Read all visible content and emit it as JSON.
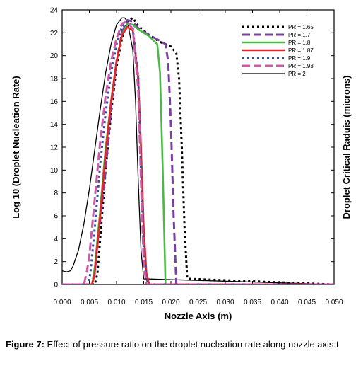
{
  "chart_data": {
    "type": "line",
    "xlabel": "Nozzle Axis (m)",
    "ylabel": "Log 10 (Droplet Nucleation Rate)",
    "y2label": "Droplet Critical Raduis (microns)",
    "xlim": [
      0,
      0.05
    ],
    "ylim": [
      0,
      24
    ],
    "xticks": [
      "0.000",
      "0.005",
      "0.010",
      "0.015",
      "0.020",
      "0.025",
      "0.030",
      "0.035",
      "0.040",
      "0.045",
      "0.050"
    ],
    "yticks": [
      "0",
      "2",
      "4",
      "6",
      "8",
      "10",
      "12",
      "14",
      "16",
      "18",
      "20",
      "22",
      "24"
    ],
    "legend_position": "top-right",
    "series": [
      {
        "name": "PR = 1.65",
        "color": "#000000",
        "dash": "dot",
        "x": [
          0,
          0.006,
          0.0065,
          0.007,
          0.008,
          0.009,
          0.01,
          0.011,
          0.012,
          0.013,
          0.014,
          0.016,
          0.018,
          0.02,
          0.021,
          0.0215,
          0.022,
          0.0225,
          0.023,
          0.05
        ],
        "y": [
          0,
          0,
          1.0,
          4.0,
          10.0,
          15.0,
          19.0,
          21.5,
          23.0,
          23.3,
          22.6,
          21.8,
          21.2,
          20.8,
          20.2,
          18.0,
          12.0,
          5.0,
          0.5,
          0
        ]
      },
      {
        "name": "PR = 1.7",
        "color": "#7b3fa0",
        "dash": "dash",
        "x": [
          0,
          0.0055,
          0.006,
          0.0065,
          0.008,
          0.009,
          0.01,
          0.011,
          0.012,
          0.013,
          0.014,
          0.016,
          0.018,
          0.019,
          0.0195,
          0.02,
          0.0205,
          0.021,
          0.05
        ],
        "y": [
          0,
          0,
          1.0,
          3.5,
          10.0,
          15.5,
          19.5,
          22.0,
          23.1,
          23.0,
          22.4,
          21.8,
          21.3,
          21.0,
          19.5,
          14.0,
          6.0,
          0,
          0
        ]
      },
      {
        "name": "PR = 1.8",
        "color": "#4cb848",
        "dash": "solid",
        "x": [
          0,
          0.0055,
          0.006,
          0.007,
          0.008,
          0.009,
          0.01,
          0.011,
          0.012,
          0.013,
          0.014,
          0.016,
          0.0175,
          0.018,
          0.0185,
          0.019,
          0.05
        ],
        "y": [
          0,
          0,
          1.5,
          6.5,
          12.0,
          16.0,
          19.5,
          21.8,
          22.8,
          22.7,
          22.3,
          21.7,
          21.0,
          18.5,
          10.0,
          0,
          0
        ]
      },
      {
        "name": "PR = 1.87",
        "color": "#e4262b",
        "dash": "solid",
        "x": [
          0,
          0.0055,
          0.006,
          0.007,
          0.008,
          0.009,
          0.01,
          0.011,
          0.012,
          0.013,
          0.014,
          0.0145,
          0.015,
          0.0155,
          0.016,
          0.05
        ],
        "y": [
          0,
          0,
          1.0,
          6.0,
          11.5,
          16.0,
          19.5,
          21.8,
          22.5,
          22.2,
          18.0,
          12.0,
          5.0,
          1.0,
          0,
          0
        ]
      },
      {
        "name": "PR = 1.9",
        "color": "#2f4f9f",
        "dash": "dot",
        "x": [
          0,
          0.0048,
          0.0052,
          0.006,
          0.007,
          0.008,
          0.009,
          0.01,
          0.011,
          0.012,
          0.013,
          0.014,
          0.0145,
          0.015,
          0.0155,
          0.016,
          0.05
        ],
        "y": [
          0,
          0,
          1.0,
          5.0,
          10.5,
          15.0,
          18.5,
          21.0,
          22.5,
          23.0,
          22.4,
          18.0,
          10.0,
          3.0,
          0.5,
          0,
          0
        ]
      },
      {
        "name": "PR = 1.93",
        "color": "#cc5aa8",
        "dash": "dash",
        "x": [
          0,
          0.004,
          0.0045,
          0.005,
          0.006,
          0.007,
          0.008,
          0.009,
          0.01,
          0.011,
          0.012,
          0.013,
          0.014,
          0.0145,
          0.015,
          0.0155,
          0.05
        ],
        "y": [
          0,
          0,
          1.0,
          2.5,
          7.5,
          12.5,
          16.5,
          19.5,
          21.5,
          22.8,
          23.0,
          22.3,
          17.0,
          9.0,
          2.0,
          0,
          0
        ]
      },
      {
        "name": "PR = 2",
        "color": "#000000",
        "dash": "thin",
        "x": [
          0,
          0.0008,
          0.0015,
          0.002,
          0.003,
          0.004,
          0.005,
          0.006,
          0.007,
          0.008,
          0.009,
          0.01,
          0.011,
          0.0115,
          0.012,
          0.013,
          0.0135,
          0.014,
          0.0145,
          0.015,
          0.05
        ],
        "y": [
          1.2,
          1.1,
          1.2,
          1.6,
          3.0,
          5.3,
          8.3,
          11.8,
          15.3,
          18.5,
          21.0,
          22.7,
          23.3,
          23.3,
          23.0,
          20.5,
          16.0,
          9.0,
          3.0,
          0.5,
          0
        ]
      }
    ]
  },
  "caption": {
    "label": "Figure 7:",
    "text": " Effect of pressure ratio on the droplet nucleation rate along nozzle axis.t"
  }
}
